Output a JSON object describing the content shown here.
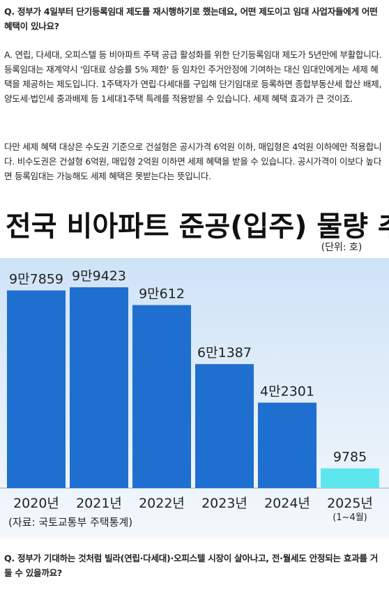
{
  "article": {
    "question1": "Q. 정부가 4일부터 단기등록임대 제도를 재시행하기로 했는데요, 어떤 제도이고 임대 사업자들에게 어떤 혜택이 있나요?",
    "answer": [
      "A. 연립, 다세대, 오피스텔 등 비아파트 주택 공급 활성화를 위한 단기등록임대 제도가 5년만에 부활합니다. 등록임대는 재계약시 '임대료 상승률 5% 제한' 등 임차인 주거안정에 기여하는 대신 임대인에게는 세제 혜택을 제공하는 제도입니다. 1주택자가 연립·다세대를 구입해 단기임대로 등록하면 종합부동산세 합산 배제, 양도세·법인세 중과배제 등 1세대1주택 특례를 적용받을 수 있습니다. 세제 혜택 효과가 큰 것이죠.",
      "다만 세제 혜택 대상은 수도권 기준으로 건설형은 공시가격 6억원 이하, 매입형은 4억원 이하에만 적용합니다. 비수도권은 건설형 6억원, 매입형 2억원 이하면 세제 혜택을 받을 수 있습니다. 공시가격이 이보다 높다면 등록임대는 가능해도 세제 혜택은 못받는다는 뜻입니다."
    ],
    "question2": "Q. 정부가 기대하는 것처럼 빌라(연립·다세대)·오피스텔 시장이 살아나고, 전·월세도 안정되는 효과를 거둘 수 있을까요?"
  },
  "chart_data": {
    "type": "bar",
    "title": "전국 비아파트 준공(입주) 물량 추이",
    "unit": "(단위: 호)",
    "categories": [
      "2020년",
      "2021년",
      "2022년",
      "2023년",
      "2024년",
      "2025년"
    ],
    "category_note": "(1~4월)",
    "values": [
      97859,
      99423,
      90612,
      61387,
      42301,
      9785
    ],
    "value_labels": [
      "9만7859",
      "9만9423",
      "9만612",
      "6만1387",
      "4만2301",
      "9785"
    ],
    "colors": [
      "#1e6fd0",
      "#1e6fd0",
      "#1e6fd0",
      "#1e6fd0",
      "#1e6fd0",
      "#5ee6ee"
    ],
    "source": "(자료: 국토교통부 주택통계)"
  }
}
